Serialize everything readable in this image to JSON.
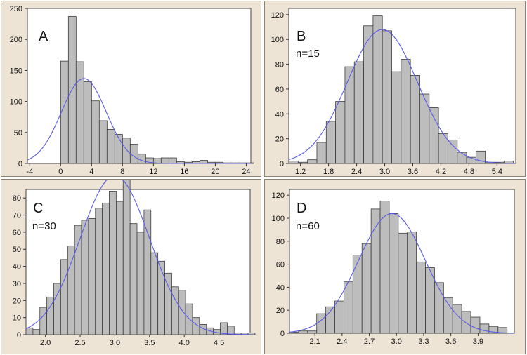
{
  "colors": {
    "bar_fill": "#bdbdbd",
    "bar_stroke": "#3c3c3c",
    "curve": "#5a5ae6",
    "panel_bg": "#ede4d6",
    "plot_bg": "#ffffff"
  },
  "chart_data": [
    {
      "type": "bar",
      "panel_label": "A",
      "sample_label": "",
      "bin_width": 1,
      "x_first_bin_left": 0,
      "xlim": [
        -4.3,
        24.6
      ],
      "ylim": [
        0,
        250
      ],
      "xticks": [
        -4,
        0,
        4,
        8,
        12,
        16,
        20,
        24
      ],
      "xtick_labels": [
        "-4",
        "0",
        "4",
        "8",
        "12",
        "16",
        "20",
        "24"
      ],
      "yticks": [
        0,
        50,
        100,
        150,
        200,
        250
      ],
      "ytick_labels": [
        "0",
        "50",
        "100",
        "150",
        "200",
        "250"
      ],
      "values": [
        165,
        237,
        164,
        132,
        101,
        69,
        55,
        47,
        41,
        31,
        15,
        9,
        8,
        9,
        9,
        3,
        2,
        3,
        5,
        2,
        2,
        1,
        1,
        1,
        1
      ],
      "curve": {
        "mean": 3.0,
        "sd": 2.9,
        "peak": 137
      },
      "grid": false
    },
    {
      "type": "bar",
      "panel_label": "B",
      "sample_label": "n=15",
      "bin_width": 0.2,
      "x_first_bin_left": 0.95,
      "xlim": [
        0.95,
        5.8
      ],
      "ylim": [
        0,
        125
      ],
      "xticks": [
        1.2,
        1.8,
        2.4,
        3.0,
        3.6,
        4.2,
        4.8,
        5.4
      ],
      "xtick_labels": [
        "1.2",
        "1.8",
        "2.4",
        "3.0",
        "3.6",
        "4.2",
        "4.8",
        "5.4"
      ],
      "yticks": [
        0,
        20,
        40,
        60,
        80,
        100,
        120
      ],
      "ytick_labels": [
        "0",
        "20",
        "40",
        "60",
        "80",
        "100",
        "120"
      ],
      "values": [
        2,
        1,
        3,
        17,
        34,
        50,
        78,
        82,
        111,
        119,
        107,
        74,
        84,
        71,
        56,
        45,
        24,
        19,
        9,
        5,
        10,
        1,
        1,
        2
      ],
      "curve": {
        "mean": 2.95,
        "sd": 0.75,
        "peak": 108
      },
      "grid": false
    },
    {
      "type": "bar",
      "panel_label": "C",
      "sample_label": "n=30",
      "bin_width": 0.1,
      "x_first_bin_left": 1.72,
      "xlim": [
        1.72,
        4.95
      ],
      "ylim": [
        0,
        85
      ],
      "xticks": [
        2.0,
        2.5,
        3.0,
        3.5,
        4.0,
        4.5
      ],
      "xtick_labels": [
        "2.0",
        "2.5",
        "3.0",
        "3.5",
        "4.0",
        "4.5"
      ],
      "yticks": [
        0,
        10,
        20,
        30,
        40,
        50,
        60,
        70,
        80
      ],
      "ytick_labels": [
        "0",
        "10",
        "20",
        "30",
        "40",
        "50",
        "60",
        "70",
        "80"
      ],
      "values": [
        4,
        3,
        16,
        22,
        30,
        44,
        52,
        64,
        67,
        68,
        74,
        77,
        84,
        78,
        92,
        65,
        60,
        73,
        48,
        43,
        36,
        28,
        26,
        18,
        10,
        6,
        4,
        3,
        7,
        5,
        1,
        1,
        1
      ],
      "curve": {
        "mean": 3.0,
        "sd": 0.5,
        "peak": 93
      },
      "grid": false
    },
    {
      "type": "bar",
      "panel_label": "D",
      "sample_label": "n=60",
      "bin_width": 0.1,
      "x_first_bin_left": 1.82,
      "xlim": [
        1.82,
        4.3
      ],
      "ylim": [
        0,
        125
      ],
      "xticks": [
        2.1,
        2.4,
        2.7,
        3.0,
        3.3,
        3.6,
        3.9
      ],
      "xtick_labels": [
        "2.1",
        "2.4",
        "2.7",
        "3.0",
        "3.3",
        "3.6",
        "3.9"
      ],
      "yticks": [
        0,
        20,
        40,
        60,
        80,
        100,
        120
      ],
      "ytick_labels": [
        "0",
        "20",
        "40",
        "60",
        "80",
        "100",
        "120"
      ],
      "values": [
        1,
        2,
        2,
        17,
        23,
        28,
        45,
        68,
        78,
        108,
        115,
        104,
        87,
        88,
        62,
        57,
        44,
        31,
        25,
        19,
        14,
        8,
        6,
        5
      ],
      "curve": {
        "mean": 2.95,
        "sd": 0.37,
        "peak": 104
      },
      "grid": false
    }
  ]
}
